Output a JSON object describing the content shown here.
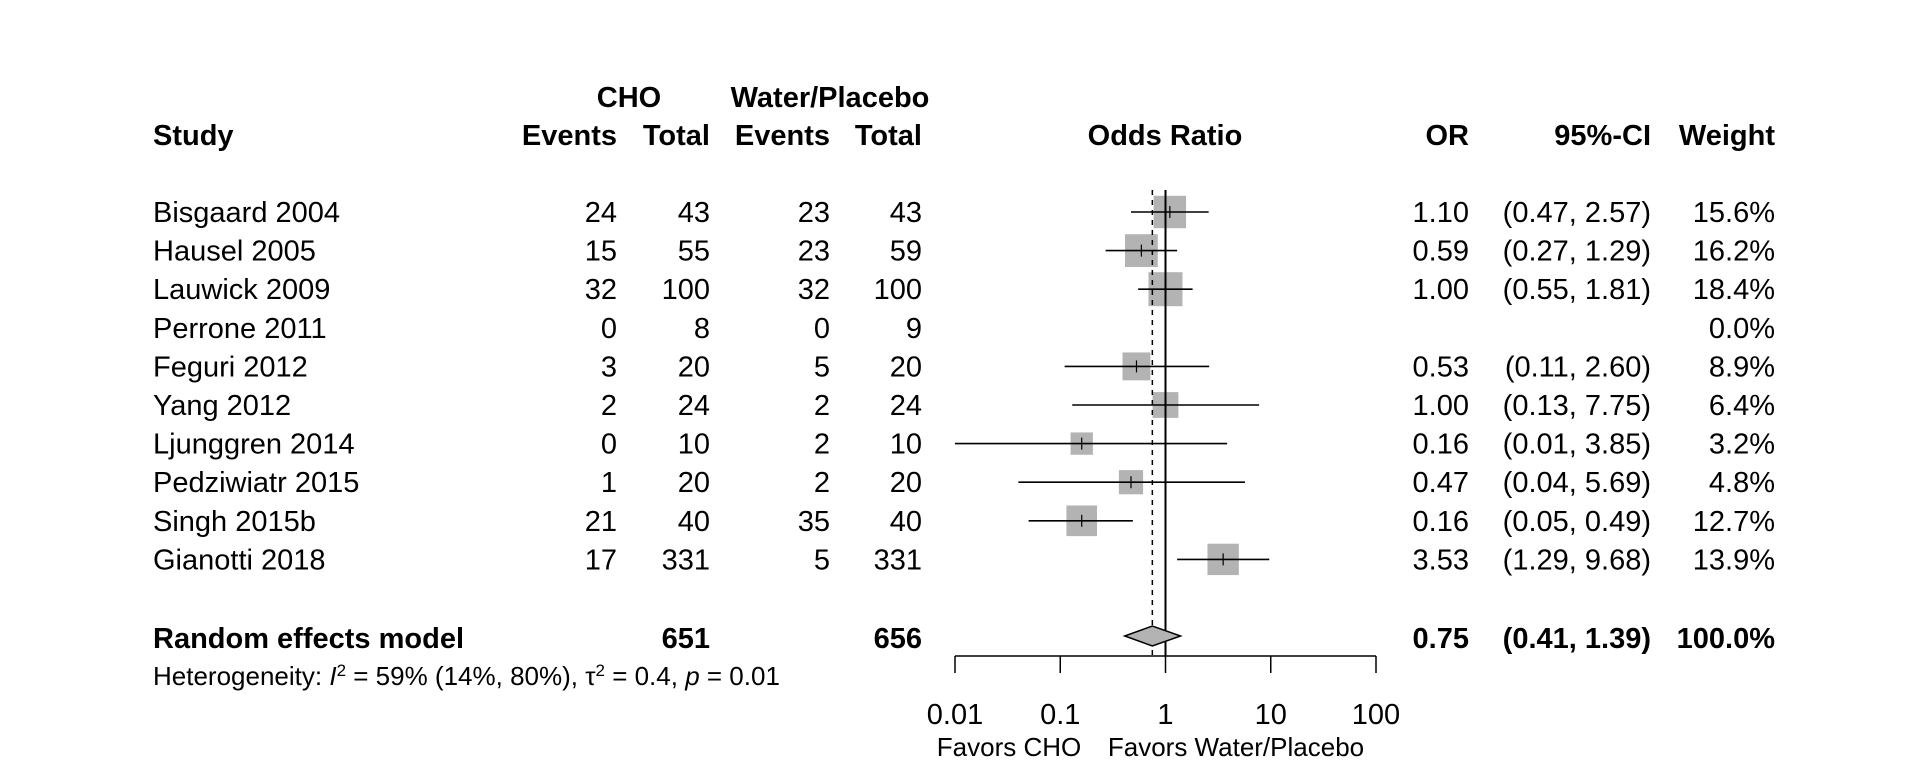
{
  "chart_data": {
    "type": "forest",
    "headers": {
      "study": "Study",
      "group1": "CHO",
      "group2": "Water/Placebo",
      "events": "Events",
      "total": "Total",
      "plot": "Odds Ratio",
      "or": "OR",
      "ci": "95%-CI",
      "weight": "Weight"
    },
    "studies": [
      {
        "name": "Bisgaard 2004",
        "e1": "24",
        "n1": "43",
        "e2": "23",
        "n2": "43",
        "or": 1.1,
        "lo": 0.47,
        "hi": 2.57,
        "weight": 15.6,
        "or_text": "1.10",
        "ci_text": "(0.47, 2.57)",
        "weight_text": "15.6%"
      },
      {
        "name": "Hausel 2005",
        "e1": "15",
        "n1": "55",
        "e2": "23",
        "n2": "59",
        "or": 0.59,
        "lo": 0.27,
        "hi": 1.29,
        "weight": 16.2,
        "or_text": "0.59",
        "ci_text": "(0.27, 1.29)",
        "weight_text": "16.2%"
      },
      {
        "name": "Lauwick 2009",
        "e1": "32",
        "n1": "100",
        "e2": "32",
        "n2": "100",
        "or": 1.0,
        "lo": 0.55,
        "hi": 1.81,
        "weight": 18.4,
        "or_text": "1.00",
        "ci_text": "(0.55, 1.81)",
        "weight_text": "18.4%"
      },
      {
        "name": "Perrone 2011",
        "e1": "0",
        "n1": "8",
        "e2": "0",
        "n2": "9",
        "or": null,
        "lo": null,
        "hi": null,
        "weight": 0.0,
        "or_text": "",
        "ci_text": "",
        "weight_text": "0.0%"
      },
      {
        "name": "Feguri 2012",
        "e1": "3",
        "n1": "20",
        "e2": "5",
        "n2": "20",
        "or": 0.53,
        "lo": 0.11,
        "hi": 2.6,
        "weight": 8.9,
        "or_text": "0.53",
        "ci_text": "(0.11, 2.60)",
        "weight_text": "8.9%"
      },
      {
        "name": "Yang 2012",
        "e1": "2",
        "n1": "24",
        "e2": "2",
        "n2": "24",
        "or": 1.0,
        "lo": 0.13,
        "hi": 7.75,
        "weight": 6.4,
        "or_text": "1.00",
        "ci_text": "(0.13, 7.75)",
        "weight_text": "6.4%"
      },
      {
        "name": "Ljunggren 2014",
        "e1": "0",
        "n1": "10",
        "e2": "2",
        "n2": "10",
        "or": 0.16,
        "lo": 0.01,
        "hi": 3.85,
        "weight": 3.2,
        "or_text": "0.16",
        "ci_text": "(0.01, 3.85)",
        "weight_text": "3.2%"
      },
      {
        "name": "Pedziwiatr 2015",
        "e1": "1",
        "n1": "20",
        "e2": "2",
        "n2": "20",
        "or": 0.47,
        "lo": 0.04,
        "hi": 5.69,
        "weight": 4.8,
        "or_text": "0.47",
        "ci_text": "(0.04, 5.69)",
        "weight_text": "4.8%"
      },
      {
        "name": "Singh 2015b",
        "e1": "21",
        "n1": "40",
        "e2": "35",
        "n2": "40",
        "or": 0.16,
        "lo": 0.05,
        "hi": 0.49,
        "weight": 12.7,
        "or_text": "0.16",
        "ci_text": "(0.05, 0.49)",
        "weight_text": "12.7%"
      },
      {
        "name": "Gianotti 2018",
        "e1": "17",
        "n1": "331",
        "e2": "5",
        "n2": "331",
        "or": 3.53,
        "lo": 1.29,
        "hi": 9.68,
        "weight": 13.9,
        "or_text": "3.53",
        "ci_text": "(1.29, 9.68)",
        "weight_text": "13.9%"
      }
    ],
    "pooled": {
      "name": "Random effects model",
      "n1": "651",
      "n2": "656",
      "or": 0.75,
      "lo": 0.41,
      "hi": 1.39,
      "or_text": "0.75",
      "ci_text": "(0.41, 1.39)",
      "weight_text": "100.0%"
    },
    "heterogeneity": {
      "prefix": "Heterogeneity: ",
      "i2_symbol": "I",
      "i2_text": " = 59% (14%, 80%), ",
      "tau_symbol": "τ",
      "tau_text": " = 0.4, ",
      "p_symbol": "p",
      "p_text": " = 0.01",
      "superscript": "2"
    },
    "x_axis": {
      "scale": "log",
      "range": [
        0.01,
        100
      ],
      "ticks": [
        0.01,
        0.1,
        1,
        10,
        100
      ],
      "tick_labels": [
        "0.01",
        "0.1",
        "1",
        "10",
        "100"
      ],
      "reference_line": 1,
      "left_label": "Favors CHO",
      "right_label": "Favors Water/Placebo"
    },
    "colors": {
      "box": "#b3b3b3",
      "diamond": "#b3b3b3",
      "line": "#000000"
    }
  }
}
